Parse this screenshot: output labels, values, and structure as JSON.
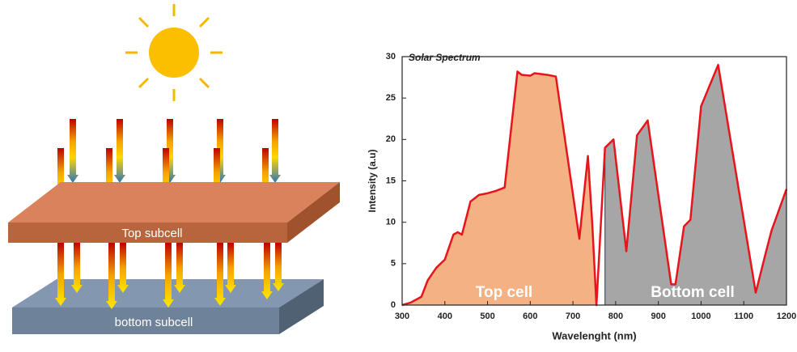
{
  "diagram": {
    "top_label": "Top subcell",
    "bottom_label": "bottom subcell"
  },
  "chart_data": {
    "type": "area",
    "title": "Solar Spectrum",
    "xlabel": "Wavelenght (nm)",
    "ylabel": "Intensity (a.u)",
    "x": [
      300,
      320,
      345,
      360,
      380,
      400,
      420,
      430,
      440,
      460,
      480,
      500,
      520,
      540,
      570,
      580,
      600,
      610,
      640,
      660,
      715,
      735,
      745,
      755,
      775,
      795,
      825,
      850,
      875,
      930,
      940,
      960,
      975,
      1000,
      1040,
      1128,
      1150,
      1165,
      1200
    ],
    "series": [
      {
        "name": "Top cell",
        "color": "#f4b183",
        "fill": true,
        "values": [
          0,
          0.3,
          1,
          3,
          4.5,
          5.5,
          8.5,
          8.8,
          8.5,
          12.5,
          13.3,
          13.5,
          13.8,
          14.2,
          28.2,
          27.8,
          27.7,
          28,
          27.8,
          27.6,
          8,
          18,
          10,
          0,
          null,
          null,
          null,
          null,
          null,
          null,
          null,
          null,
          null,
          null,
          null,
          null,
          null,
          null,
          null
        ]
      },
      {
        "name": "Bottom cell",
        "color": "#a6a6a6",
        "fill": true,
        "values": [
          null,
          null,
          null,
          null,
          null,
          null,
          null,
          null,
          null,
          null,
          null,
          null,
          null,
          null,
          null,
          null,
          null,
          null,
          null,
          null,
          null,
          null,
          null,
          null,
          19,
          20,
          6.5,
          20.5,
          22.3,
          2.5,
          2.5,
          9.5,
          10.3,
          24,
          29,
          1.5,
          6,
          9,
          14
        ]
      },
      {
        "color": "#e8141c",
        "fill": false,
        "values": [
          0,
          0.3,
          1,
          3,
          4.5,
          5.5,
          8.5,
          8.8,
          8.5,
          12.5,
          13.3,
          13.5,
          13.8,
          14.2,
          28.2,
          27.8,
          27.7,
          28,
          27.8,
          27.6,
          8,
          18,
          10,
          0,
          19,
          20,
          6.5,
          20.5,
          22.3,
          2.5,
          2.5,
          9.5,
          10.3,
          24,
          29,
          1.5,
          6,
          9,
          14
        ]
      }
    ],
    "xlim": [
      300,
      1200
    ],
    "ylim": [
      0,
      30
    ],
    "xticks": [
      300,
      400,
      500,
      600,
      700,
      800,
      900,
      1000,
      1100,
      1200
    ],
    "yticks": [
      0,
      5,
      10,
      15,
      20,
      25,
      30
    ]
  }
}
